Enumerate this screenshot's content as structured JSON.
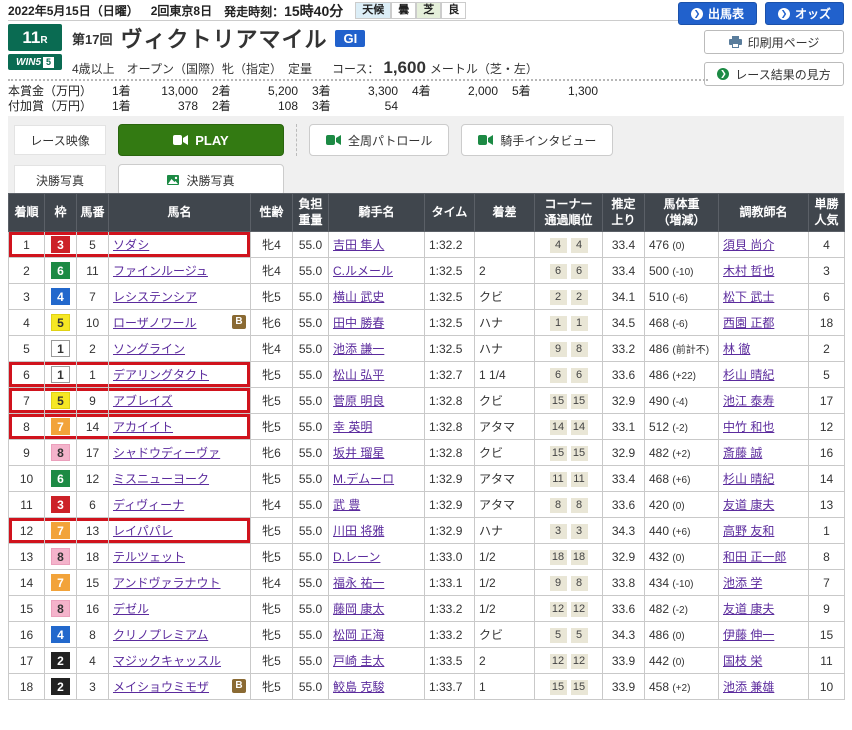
{
  "topbar": {
    "date": "2022年5月15日（日曜）",
    "meeting": "2回東京8日",
    "start_label": "発走時刻：",
    "start_time": "15時40分",
    "weather_label": "天候",
    "weather_value": "曇",
    "turf_label": "芝",
    "turf_value": "良",
    "entries_button": "出馬表",
    "odds_button": "オッズ"
  },
  "icons": {
    "arrow": "❯"
  },
  "race": {
    "number": "11",
    "r_suffix": "R",
    "win5": "WIN5",
    "win5_num": "5",
    "round": "第17回",
    "name": "ヴィクトリアマイル",
    "grade": "GI",
    "conditions": "4歳以上　オープン（国際）牝（指定）　定量",
    "course_label": "コース：",
    "course_distance": "1,600",
    "course_detail": "メートル（芝・左）",
    "print_button": "印刷用ページ",
    "guide_button": "レース結果の見方"
  },
  "prize": {
    "row1_label": "本賞金（万円）",
    "row1": [
      {
        "rank": "1着",
        "amount": "13,000"
      },
      {
        "rank": "2着",
        "amount": "5,200"
      },
      {
        "rank": "3着",
        "amount": "3,300"
      },
      {
        "rank": "4着",
        "amount": "2,000"
      },
      {
        "rank": "5着",
        "amount": "1,300"
      }
    ],
    "row2_label": "付加賞（万円）",
    "row2": [
      {
        "rank": "1着",
        "amount": "378"
      },
      {
        "rank": "2着",
        "amount": "108"
      },
      {
        "rank": "3着",
        "amount": "54"
      }
    ]
  },
  "media": {
    "video_label": "レース映像",
    "play_button": "PLAY",
    "patrol_button": "全周パトロール",
    "interview_button": "騎手インタビュー",
    "photo_label": "決勝写真",
    "photo_button": "決勝写真"
  },
  "colors": {
    "accent_blue": "#2161cc",
    "jra_green": "#0a6b52",
    "play_green": "#337a12",
    "highlight_red": "#d0131d",
    "header_bg": "#40464d",
    "link_purple": "#5b2b9d",
    "waku": {
      "1": {
        "bg": "#ffffff",
        "fg": "#333333",
        "border": "#999999"
      },
      "2": {
        "bg": "#222222",
        "fg": "#ffffff",
        "border": "#222222"
      },
      "3": {
        "bg": "#cc2128",
        "fg": "#ffffff",
        "border": "#cc2128"
      },
      "4": {
        "bg": "#2268cc",
        "fg": "#ffffff",
        "border": "#2268cc"
      },
      "5": {
        "bg": "#f6e723",
        "fg": "#333333",
        "border": "#e0d215"
      },
      "6": {
        "bg": "#1c8a44",
        "fg": "#ffffff",
        "border": "#1c8a44"
      },
      "7": {
        "bg": "#f2a33a",
        "fg": "#ffffff",
        "border": "#f2a33a"
      },
      "8": {
        "bg": "#f4b3cb",
        "fg": "#333333",
        "border": "#eba0bc"
      }
    }
  },
  "results": {
    "headers": [
      "着順",
      "枠",
      "馬番",
      "馬名",
      "性齢",
      "負担\n重量",
      "騎手名",
      "タイム",
      "着差",
      "コーナー\n通過順位",
      "推定\n上り",
      "馬体重\n（増減）",
      "調教師名",
      "単勝\n人気"
    ],
    "rows": [
      {
        "pos": "1",
        "waku": "3",
        "num": "5",
        "name": "ソダシ",
        "blinker": false,
        "highlight": true,
        "sex_age": "牝4",
        "weight": "55.0",
        "jockey": "吉田 隼人",
        "time": "1:32.2",
        "margin": "",
        "corners": [
          "4",
          "4"
        ],
        "last3f": "33.4",
        "body_weight": "476",
        "body_diff": "(0)",
        "trainer": "須貝 尚介",
        "popularity": "4"
      },
      {
        "pos": "2",
        "waku": "6",
        "num": "11",
        "name": "ファインルージュ",
        "blinker": false,
        "highlight": false,
        "sex_age": "牝4",
        "weight": "55.0",
        "jockey": "C.ルメール",
        "time": "1:32.5",
        "margin": "2",
        "corners": [
          "6",
          "6"
        ],
        "last3f": "33.4",
        "body_weight": "500",
        "body_diff": "(-10)",
        "trainer": "木村 哲也",
        "popularity": "3"
      },
      {
        "pos": "3",
        "waku": "4",
        "num": "7",
        "name": "レシステンシア",
        "blinker": false,
        "highlight": false,
        "sex_age": "牝5",
        "weight": "55.0",
        "jockey": "横山 武史",
        "time": "1:32.5",
        "margin": "クビ",
        "corners": [
          "2",
          "2"
        ],
        "last3f": "34.1",
        "body_weight": "510",
        "body_diff": "(-6)",
        "trainer": "松下 武士",
        "popularity": "6"
      },
      {
        "pos": "4",
        "waku": "5",
        "num": "10",
        "name": "ローザノワール",
        "blinker": true,
        "highlight": false,
        "sex_age": "牝6",
        "weight": "55.0",
        "jockey": "田中 勝春",
        "time": "1:32.5",
        "margin": "ハナ",
        "corners": [
          "1",
          "1"
        ],
        "last3f": "34.5",
        "body_weight": "468",
        "body_diff": "(-6)",
        "trainer": "西園 正都",
        "popularity": "18"
      },
      {
        "pos": "5",
        "waku": "1",
        "num": "2",
        "name": "ソングライン",
        "blinker": false,
        "highlight": false,
        "sex_age": "牝4",
        "weight": "55.0",
        "jockey": "池添 謙一",
        "time": "1:32.5",
        "margin": "ハナ",
        "corners": [
          "9",
          "8"
        ],
        "last3f": "33.2",
        "body_weight": "486",
        "body_diff": "(前計不)",
        "trainer": "林 徹",
        "popularity": "2"
      },
      {
        "pos": "6",
        "waku": "1",
        "num": "1",
        "name": "デアリングタクト",
        "blinker": false,
        "highlight": true,
        "sex_age": "牝5",
        "weight": "55.0",
        "jockey": "松山 弘平",
        "time": "1:32.7",
        "margin": "1 1/4",
        "corners": [
          "6",
          "6"
        ],
        "last3f": "33.6",
        "body_weight": "486",
        "body_diff": "(+22)",
        "trainer": "杉山 晴紀",
        "popularity": "5"
      },
      {
        "pos": "7",
        "waku": "5",
        "num": "9",
        "name": "アブレイズ",
        "blinker": false,
        "highlight": true,
        "sex_age": "牝5",
        "weight": "55.0",
        "jockey": "菅原 明良",
        "time": "1:32.8",
        "margin": "クビ",
        "corners": [
          "15",
          "15"
        ],
        "last3f": "32.9",
        "body_weight": "490",
        "body_diff": "(-4)",
        "trainer": "池江 泰寿",
        "popularity": "17"
      },
      {
        "pos": "8",
        "waku": "7",
        "num": "14",
        "name": "アカイイト",
        "blinker": false,
        "highlight": true,
        "sex_age": "牝5",
        "weight": "55.0",
        "jockey": "幸 英明",
        "time": "1:32.8",
        "margin": "アタマ",
        "corners": [
          "14",
          "14"
        ],
        "last3f": "33.1",
        "body_weight": "512",
        "body_diff": "(-2)",
        "trainer": "中竹 和也",
        "popularity": "12"
      },
      {
        "pos": "9",
        "waku": "8",
        "num": "17",
        "name": "シャドウディーヴァ",
        "blinker": false,
        "highlight": false,
        "sex_age": "牝6",
        "weight": "55.0",
        "jockey": "坂井 瑠星",
        "time": "1:32.8",
        "margin": "クビ",
        "corners": [
          "15",
          "15"
        ],
        "last3f": "32.9",
        "body_weight": "482",
        "body_diff": "(+2)",
        "trainer": "斎藤 誠",
        "popularity": "16"
      },
      {
        "pos": "10",
        "waku": "6",
        "num": "12",
        "name": "ミスニューヨーク",
        "blinker": false,
        "highlight": false,
        "sex_age": "牝5",
        "weight": "55.0",
        "jockey": "M.デムーロ",
        "time": "1:32.9",
        "margin": "アタマ",
        "corners": [
          "11",
          "11"
        ],
        "last3f": "33.4",
        "body_weight": "468",
        "body_diff": "(+6)",
        "trainer": "杉山 晴紀",
        "popularity": "14"
      },
      {
        "pos": "11",
        "waku": "3",
        "num": "6",
        "name": "ディヴィーナ",
        "blinker": false,
        "highlight": false,
        "sex_age": "牝4",
        "weight": "55.0",
        "jockey": "武 豊",
        "time": "1:32.9",
        "margin": "アタマ",
        "corners": [
          "8",
          "8"
        ],
        "last3f": "33.6",
        "body_weight": "420",
        "body_diff": "(0)",
        "trainer": "友道 康夫",
        "popularity": "13"
      },
      {
        "pos": "12",
        "waku": "7",
        "num": "13",
        "name": "レイパパレ",
        "blinker": false,
        "highlight": true,
        "sex_age": "牝5",
        "weight": "55.0",
        "jockey": "川田 将雅",
        "time": "1:32.9",
        "margin": "ハナ",
        "corners": [
          "3",
          "3"
        ],
        "last3f": "34.3",
        "body_weight": "440",
        "body_diff": "(+6)",
        "trainer": "高野 友和",
        "popularity": "1"
      },
      {
        "pos": "13",
        "waku": "8",
        "num": "18",
        "name": "テルツェット",
        "blinker": false,
        "highlight": false,
        "sex_age": "牝5",
        "weight": "55.0",
        "jockey": "D.レーン",
        "time": "1:33.0",
        "margin": "1/2",
        "corners": [
          "18",
          "18"
        ],
        "last3f": "32.9",
        "body_weight": "432",
        "body_diff": "(0)",
        "trainer": "和田 正一郎",
        "popularity": "8"
      },
      {
        "pos": "14",
        "waku": "7",
        "num": "15",
        "name": "アンドヴァラナウト",
        "blinker": false,
        "highlight": false,
        "sex_age": "牝4",
        "weight": "55.0",
        "jockey": "福永 祐一",
        "time": "1:33.1",
        "margin": "1/2",
        "corners": [
          "9",
          "8"
        ],
        "last3f": "33.8",
        "body_weight": "434",
        "body_diff": "(-10)",
        "trainer": "池添 学",
        "popularity": "7"
      },
      {
        "pos": "15",
        "waku": "8",
        "num": "16",
        "name": "デゼル",
        "blinker": false,
        "highlight": false,
        "sex_age": "牝5",
        "weight": "55.0",
        "jockey": "藤岡 康太",
        "time": "1:33.2",
        "margin": "1/2",
        "corners": [
          "12",
          "12"
        ],
        "last3f": "33.6",
        "body_weight": "482",
        "body_diff": "(-2)",
        "trainer": "友道 康夫",
        "popularity": "9"
      },
      {
        "pos": "16",
        "waku": "4",
        "num": "8",
        "name": "クリノプレミアム",
        "blinker": false,
        "highlight": false,
        "sex_age": "牝5",
        "weight": "55.0",
        "jockey": "松岡 正海",
        "time": "1:33.2",
        "margin": "クビ",
        "corners": [
          "5",
          "5"
        ],
        "last3f": "34.3",
        "body_weight": "486",
        "body_diff": "(0)",
        "trainer": "伊藤 伸一",
        "popularity": "15"
      },
      {
        "pos": "17",
        "waku": "2",
        "num": "4",
        "name": "マジックキャッスル",
        "blinker": false,
        "highlight": false,
        "sex_age": "牝5",
        "weight": "55.0",
        "jockey": "戸崎 圭太",
        "time": "1:33.5",
        "margin": "2",
        "corners": [
          "12",
          "12"
        ],
        "last3f": "33.9",
        "body_weight": "442",
        "body_diff": "(0)",
        "trainer": "国枝 栄",
        "popularity": "11"
      },
      {
        "pos": "18",
        "waku": "2",
        "num": "3",
        "name": "メイショウミモザ",
        "blinker": true,
        "highlight": false,
        "sex_age": "牝5",
        "weight": "55.0",
        "jockey": "鮫島 克駿",
        "time": "1:33.7",
        "margin": "1",
        "corners": [
          "15",
          "15"
        ],
        "last3f": "33.9",
        "body_weight": "458",
        "body_diff": "(+2)",
        "trainer": "池添 兼雄",
        "popularity": "10"
      }
    ]
  }
}
